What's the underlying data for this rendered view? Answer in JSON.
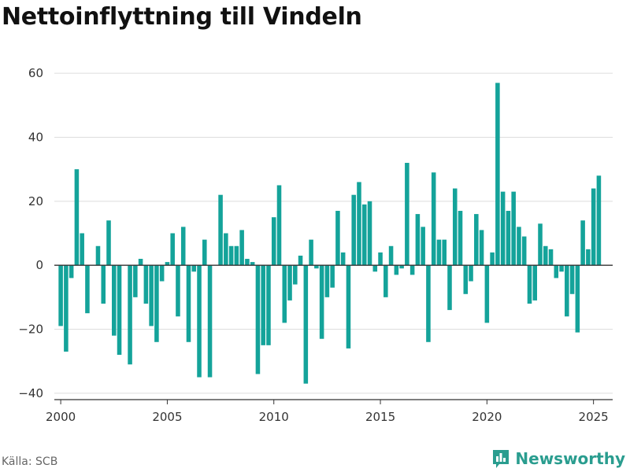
{
  "title": "Nettoinflyttning till Vindeln",
  "source": "Källa: SCB",
  "brand": "Newsworthy",
  "colors": {
    "bar": "#14a39a",
    "brand": "#2a9d8f"
  },
  "chart_data": {
    "type": "bar",
    "title": "Nettoinflyttning till Vindeln",
    "xlabel": "",
    "ylabel": "",
    "ylim": [
      -42,
      62
    ],
    "xlim": [
      1999.7,
      2025.9
    ],
    "yticks": [
      60,
      40,
      20,
      0,
      -20,
      -40
    ],
    "ytick_labels": [
      "60",
      "40",
      "20",
      "0",
      "−20",
      "−40"
    ],
    "xticks": [
      2000,
      2005,
      2010,
      2015,
      2020,
      2025
    ],
    "xtick_labels": [
      "2000",
      "2005",
      "2010",
      "2015",
      "2020",
      "2025"
    ],
    "grid": "horizontal",
    "frequency": "quarterly",
    "first_period": "2000 Q1",
    "values": [
      -19,
      -27,
      -4,
      30,
      10,
      -15,
      0,
      6,
      -12,
      14,
      -22,
      -28,
      0,
      -31,
      -10,
      2,
      -12,
      -19,
      -24,
      -5,
      1,
      10,
      -16,
      12,
      -24,
      -2,
      -35,
      8,
      -35,
      0,
      22,
      10,
      6,
      6,
      11,
      2,
      1,
      -34,
      -25,
      -25,
      15,
      25,
      -18,
      -11,
      -6,
      3,
      -37,
      8,
      -1,
      -23,
      -10,
      -7,
      17,
      4,
      -26,
      22,
      26,
      19,
      20,
      -2,
      4,
      -10,
      6,
      -3,
      -1,
      32,
      -3,
      16,
      12,
      -24,
      29,
      8,
      8,
      -14,
      24,
      17,
      -9,
      -5,
      16,
      11,
      -18,
      4,
      57,
      23,
      17,
      23,
      12,
      9,
      -12,
      -11,
      13,
      6,
      5,
      -4,
      -2,
      -16,
      -9,
      -21,
      14,
      5,
      24,
      28
    ]
  }
}
